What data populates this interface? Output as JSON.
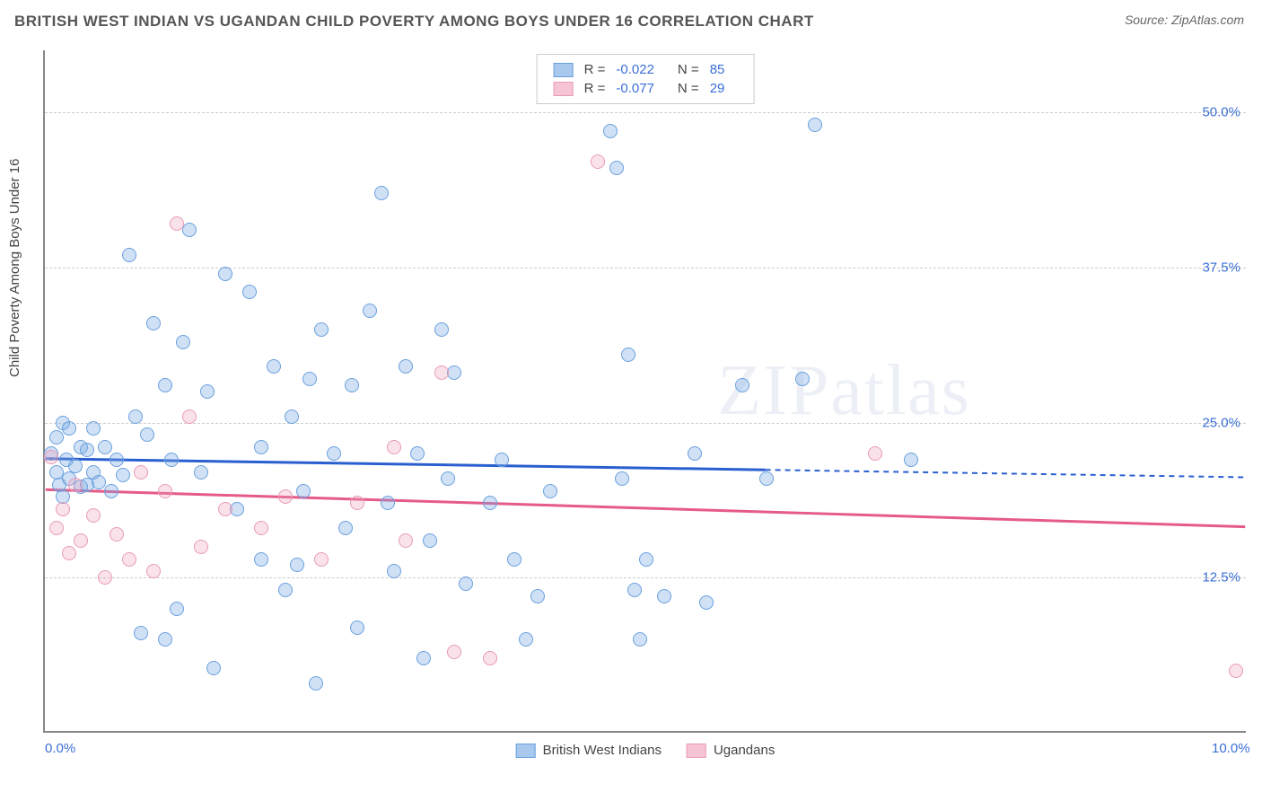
{
  "title": "BRITISH WEST INDIAN VS UGANDAN CHILD POVERTY AMONG BOYS UNDER 16 CORRELATION CHART",
  "source_label": "Source: ",
  "source_name": "ZipAtlas.com",
  "ylabel": "Child Poverty Among Boys Under 16",
  "watermark": {
    "z": "ZIP",
    "rest": "atlas"
  },
  "chart": {
    "type": "scatter",
    "background_color": "#ffffff",
    "grid_color": "#cccccc",
    "axis_color": "#888888",
    "xlim": [
      0,
      10
    ],
    "ylim": [
      0,
      55
    ],
    "xticks": [
      {
        "value": 0.0,
        "label": "0.0%"
      },
      {
        "value": 10.0,
        "label": "10.0%"
      }
    ],
    "yticks": [
      {
        "value": 12.5,
        "label": "12.5%"
      },
      {
        "value": 25.0,
        "label": "25.0%"
      },
      {
        "value": 37.5,
        "label": "37.5%"
      },
      {
        "value": 50.0,
        "label": "50.0%"
      }
    ],
    "marker_radius": 8,
    "marker_stroke_width": 1.5,
    "series": [
      {
        "id": "bwi",
        "name": "British West Indians",
        "fill_color": "rgba(120,170,230,0.35)",
        "stroke_color": "#6aa0dd",
        "swatch_fill": "#a8c8ee",
        "swatch_border": "#6aa0dd",
        "trend_color": "#2a5fd0",
        "trend": {
          "x0": 0,
          "y0": 22.0,
          "x1_solid": 6.0,
          "y1_solid": 21.1,
          "x1_dash": 10.0,
          "y1_dash": 20.5
        },
        "R": "-0.022",
        "N": "85",
        "points": [
          [
            0.05,
            22.5
          ],
          [
            0.1,
            21.0
          ],
          [
            0.1,
            23.8
          ],
          [
            0.12,
            20.0
          ],
          [
            0.15,
            25.0
          ],
          [
            0.15,
            19.0
          ],
          [
            0.18,
            22.0
          ],
          [
            0.2,
            20.5
          ],
          [
            0.2,
            24.5
          ],
          [
            0.25,
            21.5
          ],
          [
            0.3,
            19.8
          ],
          [
            0.3,
            23.0
          ],
          [
            0.35,
            20.0
          ],
          [
            0.35,
            22.8
          ],
          [
            0.4,
            21.0
          ],
          [
            0.4,
            24.5
          ],
          [
            0.45,
            20.2
          ],
          [
            0.5,
            23.0
          ],
          [
            0.55,
            19.5
          ],
          [
            0.6,
            22.0
          ],
          [
            0.65,
            20.8
          ],
          [
            0.7,
            38.5
          ],
          [
            0.75,
            25.5
          ],
          [
            0.8,
            8.0
          ],
          [
            0.85,
            24.0
          ],
          [
            0.9,
            33.0
          ],
          [
            1.0,
            28.0
          ],
          [
            1.0,
            7.5
          ],
          [
            1.05,
            22.0
          ],
          [
            1.1,
            10.0
          ],
          [
            1.15,
            31.5
          ],
          [
            1.2,
            40.5
          ],
          [
            1.3,
            21.0
          ],
          [
            1.35,
            27.5
          ],
          [
            1.4,
            5.2
          ],
          [
            1.5,
            37.0
          ],
          [
            1.6,
            18.0
          ],
          [
            1.7,
            35.5
          ],
          [
            1.8,
            14.0
          ],
          [
            1.8,
            23.0
          ],
          [
            1.9,
            29.5
          ],
          [
            2.0,
            11.5
          ],
          [
            2.05,
            25.5
          ],
          [
            2.1,
            13.5
          ],
          [
            2.15,
            19.5
          ],
          [
            2.2,
            28.5
          ],
          [
            2.25,
            4.0
          ],
          [
            2.3,
            32.5
          ],
          [
            2.4,
            22.5
          ],
          [
            2.5,
            16.5
          ],
          [
            2.55,
            28.0
          ],
          [
            2.6,
            8.5
          ],
          [
            2.7,
            34.0
          ],
          [
            2.8,
            43.5
          ],
          [
            2.85,
            18.5
          ],
          [
            2.9,
            13.0
          ],
          [
            3.0,
            29.5
          ],
          [
            3.1,
            22.5
          ],
          [
            3.15,
            6.0
          ],
          [
            3.2,
            15.5
          ],
          [
            3.3,
            32.5
          ],
          [
            3.35,
            20.5
          ],
          [
            3.4,
            29.0
          ],
          [
            3.5,
            12.0
          ],
          [
            3.7,
            18.5
          ],
          [
            3.8,
            22.0
          ],
          [
            3.9,
            14.0
          ],
          [
            4.0,
            7.5
          ],
          [
            4.1,
            11.0
          ],
          [
            4.2,
            19.5
          ],
          [
            4.7,
            48.5
          ],
          [
            4.75,
            45.5
          ],
          [
            4.8,
            20.5
          ],
          [
            4.85,
            30.5
          ],
          [
            4.9,
            11.5
          ],
          [
            4.95,
            7.5
          ],
          [
            5.0,
            14.0
          ],
          [
            5.15,
            11.0
          ],
          [
            5.4,
            22.5
          ],
          [
            5.5,
            10.5
          ],
          [
            5.8,
            28.0
          ],
          [
            6.0,
            20.5
          ],
          [
            6.3,
            28.5
          ],
          [
            6.4,
            49.0
          ],
          [
            7.2,
            22.0
          ]
        ]
      },
      {
        "id": "ugandan",
        "name": "Ugandans",
        "fill_color": "rgba(240,160,190,0.30)",
        "stroke_color": "#e99ab5",
        "swatch_fill": "#f6c4d4",
        "swatch_border": "#e99ab5",
        "trend_color": "#e55a8a",
        "trend": {
          "x0": 0,
          "y0": 19.5,
          "x1_solid": 10.0,
          "y1_solid": 16.5,
          "x1_dash": 10.0,
          "y1_dash": 16.5
        },
        "R": "-0.077",
        "N": "29",
        "points": [
          [
            0.05,
            22.2
          ],
          [
            0.1,
            16.5
          ],
          [
            0.15,
            18.0
          ],
          [
            0.2,
            14.5
          ],
          [
            0.25,
            20.0
          ],
          [
            0.3,
            15.5
          ],
          [
            0.4,
            17.5
          ],
          [
            0.5,
            12.5
          ],
          [
            0.6,
            16.0
          ],
          [
            0.7,
            14.0
          ],
          [
            0.8,
            21.0
          ],
          [
            0.9,
            13.0
          ],
          [
            1.0,
            19.5
          ],
          [
            1.1,
            41.0
          ],
          [
            1.2,
            25.5
          ],
          [
            1.3,
            15.0
          ],
          [
            1.5,
            18.0
          ],
          [
            1.8,
            16.5
          ],
          [
            2.0,
            19.0
          ],
          [
            2.3,
            14.0
          ],
          [
            2.6,
            18.5
          ],
          [
            2.9,
            23.0
          ],
          [
            3.0,
            15.5
          ],
          [
            3.3,
            29.0
          ],
          [
            3.4,
            6.5
          ],
          [
            3.7,
            6.0
          ],
          [
            4.6,
            46.0
          ],
          [
            6.9,
            22.5
          ],
          [
            9.9,
            5.0
          ]
        ]
      }
    ]
  },
  "legend_top": {
    "R_label": "R =",
    "N_label": "N ="
  }
}
